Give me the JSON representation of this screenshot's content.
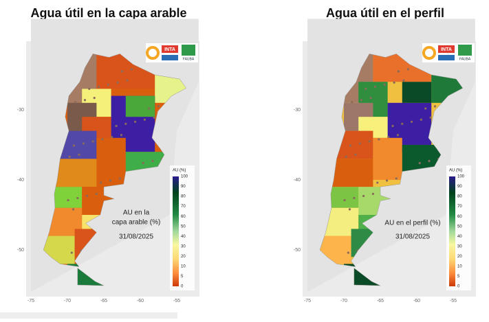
{
  "panels": [
    {
      "title": "Agua útil en la capa arable",
      "annotation": [
        "AU en la",
        "capa arable (%)"
      ],
      "date": "31/08/2025"
    },
    {
      "title": "Agua útil en el perfil",
      "annotation": [
        "AU en el perfil (%)"
      ],
      "date": "31/08/2025"
    }
  ],
  "axes": {
    "x_ticks": [
      "-75",
      "-70",
      "-65",
      "-60",
      "-55"
    ],
    "y_ticks": [
      "-30",
      "-40",
      "-50"
    ]
  },
  "legend": {
    "title": "AU (%)",
    "labels": [
      "100",
      "90",
      "80",
      "70",
      "60",
      "50",
      "40",
      "30",
      "20",
      "10",
      "5",
      "0"
    ]
  },
  "logos": [
    "INTA",
    "FAUBA"
  ]
}
